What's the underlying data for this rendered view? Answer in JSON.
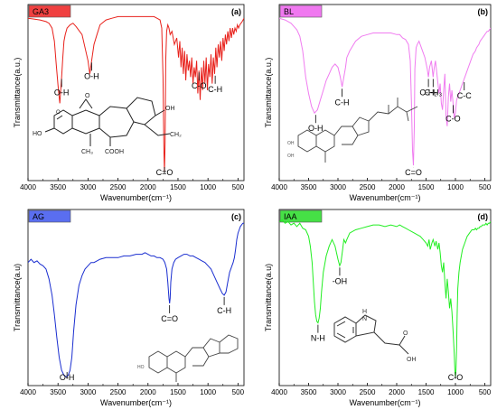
{
  "chart_data": [
    {
      "type": "line",
      "tag": "GA3",
      "tag_color": "#f04040",
      "letter": "(a)",
      "xlabel": "Wavenumber(cm⁻¹)",
      "ylabel": "Transmittance(a.u.)",
      "xlim": [
        4000,
        400
      ],
      "x_ticks": [
        "4000",
        "3500",
        "3000",
        "2500",
        "2000",
        "1500",
        "1000",
        "500"
      ],
      "line_color": "#e8211b",
      "series": [
        {
          "x": [
            4000,
            3900,
            3800,
            3700,
            3650,
            3600,
            3560,
            3530,
            3500,
            3470,
            3440,
            3420,
            3400,
            3380,
            3350,
            3300,
            3250,
            3200,
            3100,
            3050,
            3000,
            2970,
            2940,
            2900,
            2850,
            2800,
            2700,
            2600,
            2500,
            2400,
            2300,
            2200,
            2100,
            2000,
            1900,
            1850,
            1800,
            1770,
            1750,
            1735,
            1725,
            1715,
            1705,
            1690,
            1670,
            1650,
            1630,
            1600,
            1560,
            1520,
            1490,
            1470,
            1450,
            1430,
            1410,
            1390,
            1370,
            1350,
            1330,
            1310,
            1290,
            1270,
            1250,
            1230,
            1210,
            1190,
            1170,
            1150,
            1130,
            1110,
            1090,
            1070,
            1050,
            1030,
            1010,
            990,
            970,
            950,
            930,
            910,
            890,
            870,
            850,
            830,
            810,
            790,
            770,
            750,
            730,
            710,
            690,
            670,
            650,
            630,
            610,
            590,
            570,
            550,
            530,
            510,
            490,
            470,
            450,
            430,
            400
          ],
          "y": [
            0.96,
            0.955,
            0.95,
            0.94,
            0.93,
            0.9,
            0.82,
            0.68,
            0.55,
            0.44,
            0.6,
            0.72,
            0.82,
            0.86,
            0.9,
            0.92,
            0.93,
            0.91,
            0.86,
            0.78,
            0.7,
            0.62,
            0.7,
            0.8,
            0.86,
            0.92,
            0.95,
            0.96,
            0.97,
            0.97,
            0.97,
            0.97,
            0.97,
            0.97,
            0.97,
            0.96,
            0.95,
            0.9,
            0.6,
            0.15,
            0.02,
            0.2,
            0.7,
            0.88,
            0.92,
            0.9,
            0.86,
            0.88,
            0.8,
            0.84,
            0.72,
            0.82,
            0.66,
            0.78,
            0.62,
            0.76,
            0.58,
            0.74,
            0.64,
            0.7,
            0.6,
            0.72,
            0.56,
            0.66,
            0.6,
            0.7,
            0.5,
            0.64,
            0.46,
            0.66,
            0.52,
            0.7,
            0.56,
            0.72,
            0.52,
            0.68,
            0.6,
            0.74,
            0.56,
            0.72,
            0.62,
            0.78,
            0.66,
            0.8,
            0.72,
            0.82,
            0.7,
            0.84,
            0.76,
            0.86,
            0.8,
            0.88,
            0.82,
            0.9,
            0.84,
            0.9,
            0.86,
            0.9,
            0.88,
            0.92,
            0.9,
            0.92,
            0.93,
            0.94,
            0.96
          ]
        }
      ],
      "annotations": [
        {
          "text": "O-H",
          "x": 3440
        },
        {
          "text": "O-H",
          "x": 2940
        },
        {
          "text": "C=O",
          "x": 1725
        },
        {
          "text": "C-O",
          "x": 1150
        },
        {
          "text": "C-H",
          "x": 880
        }
      ]
    },
    {
      "type": "line",
      "tag": "BL",
      "tag_color": "#f078f0",
      "letter": "(b)",
      "xlabel": "Wavenumber(cm⁻¹)",
      "ylabel": "Transmittance(a.u.)",
      "xlim": [
        4000,
        400
      ],
      "x_ticks": [
        "4000",
        "3500",
        "3000",
        "2500",
        "2000",
        "1500",
        "1000",
        "500"
      ],
      "line_color": "#f07cf0",
      "series": [
        {
          "x": [
            4000,
            3900,
            3800,
            3700,
            3650,
            3600,
            3550,
            3500,
            3450,
            3400,
            3350,
            3300,
            3250,
            3200,
            3150,
            3100,
            3050,
            3000,
            2960,
            2930,
            2900,
            2870,
            2850,
            2800,
            2700,
            2600,
            2500,
            2400,
            2300,
            2200,
            2100,
            2000,
            1950,
            1900,
            1850,
            1800,
            1770,
            1750,
            1730,
            1715,
            1700,
            1690,
            1670,
            1650,
            1620,
            1600,
            1560,
            1520,
            1480,
            1460,
            1440,
            1410,
            1380,
            1360,
            1340,
            1310,
            1280,
            1260,
            1240,
            1220,
            1200,
            1180,
            1160,
            1140,
            1120,
            1100,
            1080,
            1060,
            1040,
            1020,
            1000,
            980,
            960,
            940,
            920,
            900,
            880,
            860,
            840,
            820,
            800,
            780,
            760,
            740,
            720,
            700,
            680,
            660,
            640,
            620,
            600,
            580,
            560,
            540,
            520,
            500,
            480,
            460,
            440,
            420,
            400
          ],
          "y": [
            0.96,
            0.95,
            0.93,
            0.89,
            0.85,
            0.76,
            0.6,
            0.5,
            0.42,
            0.38,
            0.4,
            0.46,
            0.52,
            0.58,
            0.62,
            0.66,
            0.68,
            0.66,
            0.6,
            0.54,
            0.6,
            0.66,
            0.72,
            0.76,
            0.82,
            0.85,
            0.86,
            0.87,
            0.87,
            0.87,
            0.87,
            0.86,
            0.86,
            0.84,
            0.83,
            0.8,
            0.7,
            0.45,
            0.15,
            0.06,
            0.3,
            0.65,
            0.78,
            0.8,
            0.82,
            0.8,
            0.76,
            0.72,
            0.65,
            0.6,
            0.66,
            0.7,
            0.6,
            0.66,
            0.7,
            0.6,
            0.5,
            0.56,
            0.44,
            0.4,
            0.52,
            0.62,
            0.36,
            0.3,
            0.48,
            0.56,
            0.45,
            0.52,
            0.44,
            0.35,
            0.38,
            0.46,
            0.48,
            0.5,
            0.52,
            0.54,
            0.56,
            0.58,
            0.6,
            0.62,
            0.64,
            0.66,
            0.68,
            0.7,
            0.72,
            0.74,
            0.75,
            0.76,
            0.78,
            0.79,
            0.8,
            0.82,
            0.83,
            0.84,
            0.85,
            0.86,
            0.87,
            0.88,
            0.88,
            0.89,
            0.9
          ]
        }
      ],
      "annotations": [
        {
          "text": "O-H",
          "x": 3380
        },
        {
          "text": "C-H",
          "x": 2930
        },
        {
          "text": "C=O",
          "x": 1715
        },
        {
          "text": "C-H₂",
          "x": 1460
        },
        {
          "text": "C-H₃",
          "x": 1380
        },
        {
          "text": "C-O",
          "x": 1040
        },
        {
          "text": "C-C",
          "x": 850
        }
      ]
    },
    {
      "type": "line",
      "tag": "AG",
      "tag_color": "#5a6ef0",
      "letter": "(c)",
      "xlabel": "Wavenumber(cm⁻¹)",
      "ylabel": "Transmittance(a.u)",
      "xlim": [
        4000,
        400
      ],
      "x_ticks": [
        "4000",
        "3500",
        "3000",
        "2500",
        "2000",
        "1500",
        "1000",
        "500"
      ],
      "line_color": "#1a2ed0",
      "series": [
        {
          "x": [
            4000,
            3950,
            3900,
            3850,
            3800,
            3750,
            3700,
            3650,
            3600,
            3560,
            3520,
            3480,
            3440,
            3400,
            3360,
            3330,
            3300,
            3270,
            3240,
            3200,
            3150,
            3100,
            3050,
            3000,
            2950,
            2900,
            2850,
            2800,
            2700,
            2600,
            2500,
            2400,
            2300,
            2200,
            2100,
            2050,
            2000,
            1950,
            1900,
            1850,
            1800,
            1750,
            1720,
            1690,
            1670,
            1650,
            1640,
            1630,
            1620,
            1600,
            1570,
            1540,
            1500,
            1450,
            1400,
            1350,
            1300,
            1250,
            1200,
            1150,
            1100,
            1050,
            1000,
            950,
            900,
            850,
            800,
            760,
            730,
            700,
            680,
            660,
            640,
            620,
            600,
            580,
            560,
            540,
            520,
            500,
            480,
            460,
            440,
            420,
            400
          ],
          "y": [
            0.72,
            0.74,
            0.72,
            0.73,
            0.71,
            0.7,
            0.68,
            0.62,
            0.52,
            0.4,
            0.26,
            0.14,
            0.06,
            0.03,
            0.02,
            0.03,
            0.06,
            0.14,
            0.3,
            0.46,
            0.58,
            0.64,
            0.68,
            0.7,
            0.72,
            0.72,
            0.73,
            0.74,
            0.75,
            0.75,
            0.75,
            0.76,
            0.76,
            0.77,
            0.77,
            0.78,
            0.77,
            0.76,
            0.76,
            0.75,
            0.75,
            0.74,
            0.72,
            0.68,
            0.6,
            0.5,
            0.47,
            0.5,
            0.6,
            0.68,
            0.72,
            0.74,
            0.75,
            0.76,
            0.77,
            0.77,
            0.76,
            0.76,
            0.75,
            0.74,
            0.73,
            0.72,
            0.7,
            0.68,
            0.64,
            0.6,
            0.56,
            0.53,
            0.52,
            0.54,
            0.58,
            0.62,
            0.66,
            0.68,
            0.7,
            0.72,
            0.75,
            0.8,
            0.86,
            0.9,
            0.92,
            0.94,
            0.95,
            0.96,
            0.96
          ]
        }
      ],
      "annotations": [
        {
          "text": "O-H",
          "x": 3350
        },
        {
          "text": "C=O",
          "x": 1640
        },
        {
          "text": "C-H",
          "x": 730
        }
      ]
    },
    {
      "type": "line",
      "tag": "IAA",
      "tag_color": "#46e046",
      "letter": "(d)",
      "xlabel": "Wavenumber(cm⁻¹)",
      "ylabel": "Transmittance(a.u)",
      "xlim": [
        4000,
        400
      ],
      "x_ticks": [
        "4000",
        "3500",
        "3000",
        "2500",
        "2000",
        "1500",
        "1000",
        "500"
      ],
      "line_color": "#22ee22",
      "series": [
        {
          "x": [
            4000,
            3950,
            3900,
            3850,
            3800,
            3750,
            3700,
            3650,
            3600,
            3550,
            3500,
            3470,
            3440,
            3420,
            3400,
            3380,
            3360,
            3340,
            3320,
            3300,
            3280,
            3250,
            3200,
            3150,
            3100,
            3050,
            3000,
            2970,
            2950,
            2920,
            2900,
            2870,
            2850,
            2800,
            2700,
            2600,
            2500,
            2400,
            2300,
            2200,
            2100,
            2000,
            1950,
            1900,
            1850,
            1800,
            1750,
            1700,
            1650,
            1600,
            1550,
            1500,
            1470,
            1450,
            1430,
            1400,
            1380,
            1350,
            1330,
            1300,
            1280,
            1260,
            1240,
            1220,
            1200,
            1180,
            1160,
            1140,
            1120,
            1100,
            1080,
            1060,
            1040,
            1020,
            1010,
            1000,
            990,
            980,
            970,
            960,
            940,
            920,
            900,
            880,
            860,
            840,
            820,
            800,
            780,
            760,
            740,
            720,
            700,
            680,
            660,
            640,
            620,
            600,
            580,
            560,
            540,
            520,
            500,
            480,
            460,
            440,
            420,
            400
          ],
          "y": [
            0.97,
            0.98,
            0.96,
            0.97,
            0.95,
            0.96,
            0.94,
            0.96,
            0.93,
            0.92,
            0.88,
            0.82,
            0.72,
            0.6,
            0.48,
            0.4,
            0.36,
            0.35,
            0.38,
            0.44,
            0.54,
            0.66,
            0.76,
            0.82,
            0.86,
            0.82,
            0.74,
            0.7,
            0.72,
            0.8,
            0.86,
            0.84,
            0.86,
            0.9,
            0.92,
            0.93,
            0.94,
            0.95,
            0.95,
            0.94,
            0.95,
            0.94,
            0.95,
            0.94,
            0.93,
            0.92,
            0.91,
            0.9,
            0.89,
            0.88,
            0.86,
            0.84,
            0.82,
            0.86,
            0.8,
            0.84,
            0.86,
            0.82,
            0.85,
            0.8,
            0.84,
            0.78,
            0.7,
            0.66,
            0.72,
            0.6,
            0.5,
            0.62,
            0.54,
            0.44,
            0.5,
            0.42,
            0.3,
            0.16,
            0.06,
            0.02,
            0.06,
            0.2,
            0.4,
            0.56,
            0.66,
            0.72,
            0.76,
            0.8,
            0.82,
            0.84,
            0.86,
            0.88,
            0.89,
            0.9,
            0.91,
            0.92,
            0.92,
            0.92,
            0.93,
            0.92,
            0.93,
            0.93,
            0.94,
            0.94,
            0.95,
            0.95,
            0.95,
            0.96,
            0.95,
            0.96,
            0.96,
            0.97
          ]
        }
      ],
      "annotations": [
        {
          "text": "N-H",
          "x": 3340
        },
        {
          "text": "-OH",
          "x": 2970
        },
        {
          "text": "C-O",
          "x": 1000
        }
      ]
    }
  ],
  "structure_labels": {
    "ga3_methyl": "CH₃",
    "ga3_carboxyl": "COOH",
    "ga3_oxygen": "O",
    "ga3_hydroxyl_left": "HO",
    "ga3_hydroxyl_right": "OH",
    "ga3_methylene": "CH₂",
    "bl_hydroxyl": "OH",
    "ag_hydroxyl": "HO",
    "iaa_nh": "H\nN",
    "iaa_oh": "OH",
    "iaa_o": "O"
  }
}
